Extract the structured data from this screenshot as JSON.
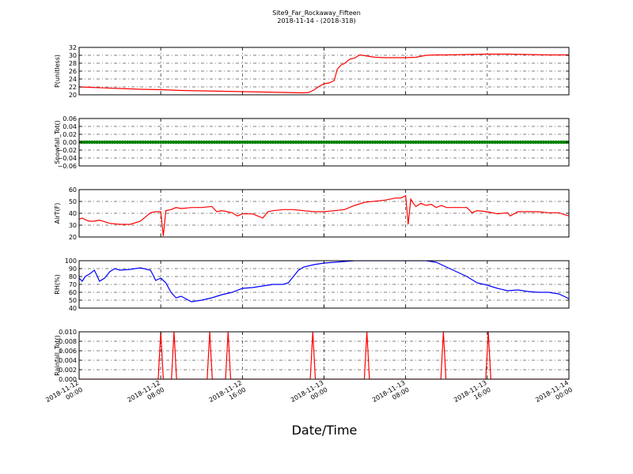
{
  "title": "Site9_Far_Rockaway_Fifteen",
  "subtitle": "2018-11-14 - (2018-318)",
  "xlabel": "Date/Time",
  "xtick_labels": [
    [
      "2018-11-12",
      "00:00"
    ],
    [
      "2018-11-12",
      "08:00"
    ],
    [
      "2018-11-12",
      "16:00"
    ],
    [
      "2018-11-13",
      "00:00"
    ],
    [
      "2018-11-13",
      "08:00"
    ],
    [
      "2018-11-13",
      "16:00"
    ],
    [
      "2018-11-14",
      "00:00"
    ]
  ],
  "chart_data": [
    {
      "type": "line",
      "ylabel": "P(unitless)",
      "ylim": [
        20,
        32
      ],
      "yticks": [
        "20",
        "22",
        "24",
        "26",
        "28",
        "30",
        "32"
      ],
      "xlim_hours": [
        0,
        48
      ],
      "grid": true,
      "series": [
        {
          "color": "#ff0000",
          "x": [
            0,
            2,
            4,
            6,
            8,
            10,
            12,
            14,
            16,
            18,
            20,
            22,
            22.5,
            23,
            23.5,
            24,
            24.5,
            25,
            25.3,
            25.7,
            26,
            26.5,
            27,
            27.5,
            28,
            29,
            30,
            31,
            32,
            33,
            34,
            35,
            36,
            38,
            40,
            42,
            44,
            46,
            48
          ],
          "y": [
            22.0,
            21.8,
            21.6,
            21.4,
            21.3,
            21.1,
            21.0,
            20.9,
            20.8,
            20.7,
            20.6,
            20.5,
            20.6,
            21.2,
            22.1,
            22.8,
            23.0,
            23.6,
            26.5,
            27.6,
            27.9,
            29.0,
            29.3,
            30.1,
            29.9,
            29.5,
            29.4,
            29.4,
            29.4,
            29.5,
            30.0,
            30.1,
            30.1,
            30.2,
            30.3,
            30.3,
            30.2,
            30.1,
            30.1
          ]
        }
      ]
    },
    {
      "type": "scatter",
      "ylabel": "Snowfall_Tot()",
      "ylim": [
        -0.06,
        0.06
      ],
      "yticks": [
        "−0.06",
        "−0.04",
        "−0.02",
        "0.00",
        "0.02",
        "0.04",
        "0.06"
      ],
      "xlim_hours": [
        0,
        48
      ],
      "grid": true,
      "series": [
        {
          "color": "#008000",
          "constant_y": 0.0,
          "x_start": 0,
          "x_end": 48,
          "x_step": 0.25
        }
      ]
    },
    {
      "type": "line",
      "ylabel": "AirT(F)",
      "ylim": [
        20,
        65
      ],
      "yticks": [
        "20",
        "30",
        "40",
        "50",
        "60"
      ],
      "xlim_hours": [
        0,
        48
      ],
      "grid": true,
      "series": [
        {
          "color": "#ff0000",
          "x": [
            0,
            0.3,
            0.7,
            1,
            1.5,
            2,
            3,
            4,
            5,
            6,
            7,
            7.5,
            8,
            8.25,
            8.5,
            9,
            9.5,
            10,
            11,
            12,
            13,
            13.5,
            14,
            15,
            15.5,
            16,
            17,
            18,
            18.5,
            19,
            20,
            21,
            22,
            23,
            24,
            25,
            26,
            27,
            28,
            29,
            30,
            31,
            31.5,
            32,
            32.25,
            32.5,
            32.75,
            33,
            33.5,
            34,
            34.5,
            35,
            35.5,
            36,
            37,
            38,
            38.5,
            39,
            40,
            41,
            42,
            42.25,
            43,
            44,
            45,
            46,
            47,
            48
          ],
          "y": [
            37,
            38,
            36,
            35,
            35,
            36,
            33,
            32,
            32,
            35,
            43,
            44,
            44,
            21,
            45,
            46,
            48,
            47,
            48,
            48,
            49,
            44,
            45,
            43,
            40,
            42,
            42,
            38,
            44,
            45,
            46,
            46,
            45,
            44,
            44,
            45,
            46,
            50,
            53,
            54,
            55,
            57,
            57,
            59,
            32,
            56,
            52,
            49,
            52,
            50,
            51,
            48,
            50,
            48,
            48,
            48,
            43,
            45,
            44,
            42,
            43,
            40,
            44,
            44,
            44,
            43,
            43,
            40
          ]
        }
      ]
    },
    {
      "type": "line",
      "ylabel": "RH(%)",
      "ylim": [
        40,
        100
      ],
      "yticks": [
        "40",
        "50",
        "60",
        "70",
        "80",
        "90",
        "100"
      ],
      "xlim_hours": [
        0,
        48
      ],
      "grid": true,
      "series": [
        {
          "color": "#0000ff",
          "x": [
            0,
            0.3,
            0.6,
            1,
            1.5,
            2,
            2.5,
            3,
            3.5,
            4,
            5,
            6,
            7,
            7.5,
            8,
            8.5,
            9,
            9.5,
            10,
            11,
            12,
            13,
            14,
            15,
            16,
            17,
            18,
            19,
            20,
            20.5,
            21,
            21.5,
            22,
            23,
            24,
            25,
            26,
            27,
            28,
            29,
            30,
            31,
            32,
            33,
            34,
            35,
            36,
            37,
            37.5,
            38,
            39,
            40,
            41,
            42,
            43,
            44,
            45,
            46,
            47,
            48
          ],
          "y": [
            78,
            74,
            80,
            83,
            88,
            74,
            78,
            86,
            90,
            88,
            89,
            91,
            88,
            75,
            78,
            72,
            60,
            53,
            55,
            48,
            50,
            53,
            57,
            60,
            65,
            66,
            68,
            70,
            70,
            72,
            80,
            88,
            92,
            95,
            97,
            98,
            99,
            100,
            100,
            100,
            100,
            100,
            100,
            100,
            100,
            98,
            92,
            86,
            83,
            80,
            72,
            69,
            65,
            62,
            63,
            61,
            60,
            60,
            58,
            52
          ]
        }
      ]
    },
    {
      "type": "line",
      "ylabel": "Rainfall_Tot()",
      "ylim": [
        0,
        0.01
      ],
      "yticks": [
        "0.000",
        "0.002",
        "0.004",
        "0.006",
        "0.008",
        "0.010"
      ],
      "xlim_hours": [
        0,
        48
      ],
      "grid": true,
      "spikes_hours": [
        8.0,
        9.3,
        12.8,
        14.6,
        22.9,
        28.2,
        35.7,
        40.1
      ],
      "series": [
        {
          "color": "#ff0000",
          "baseline": 0.0,
          "spike_value": 0.01
        }
      ]
    }
  ]
}
